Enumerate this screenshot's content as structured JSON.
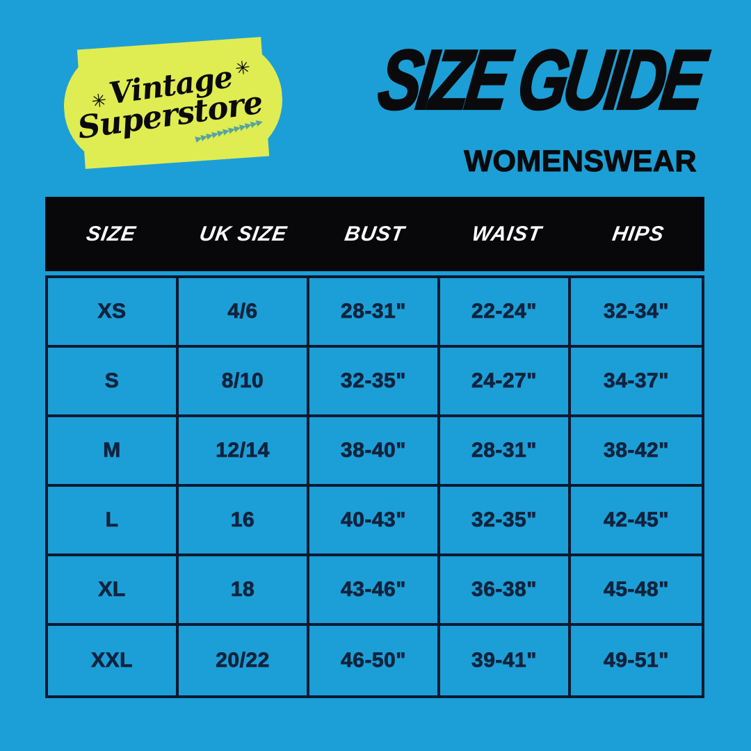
{
  "colors": {
    "background": "#1C9FD6",
    "badge": "#DFEC52",
    "ink": "#0A0A0C",
    "table_text": "#10233E",
    "border": "#0B1930",
    "header_bg": "#08080A",
    "header_text": "#FFFFFF",
    "arrow": "#55A4A0"
  },
  "logo": {
    "name_line1": "Vintage",
    "name_line2": "Superstore",
    "sparkle_left": "✳",
    "sparkle_right": "✳",
    "arrows": "▶▶▶▶▶▶▶▶▶▶▶▶"
  },
  "header": {
    "title": "SIZE GUIDE",
    "subtitle": "WOMENSWEAR"
  },
  "chart_data": {
    "type": "table",
    "title": "SIZE GUIDE",
    "subtitle": "WOMENSWEAR",
    "columns": [
      "SIZE",
      "UK SIZE",
      "BUST",
      "WAIST",
      "HIPS"
    ],
    "rows": [
      [
        "XS",
        "4/6",
        "28-31\"",
        "22-24\"",
        "32-34\""
      ],
      [
        "S",
        "8/10",
        "32-35\"",
        "24-27\"",
        "34-37\""
      ],
      [
        "M",
        "12/14",
        "38-40\"",
        "28-31\"",
        "38-42\""
      ],
      [
        "L",
        "16",
        "40-43\"",
        "32-35\"",
        "42-45\""
      ],
      [
        "XL",
        "18",
        "43-46\"",
        "36-38\"",
        "45-48\""
      ],
      [
        "XXL",
        "20/22",
        "46-50\"",
        "39-41\"",
        "49-51\""
      ]
    ]
  }
}
